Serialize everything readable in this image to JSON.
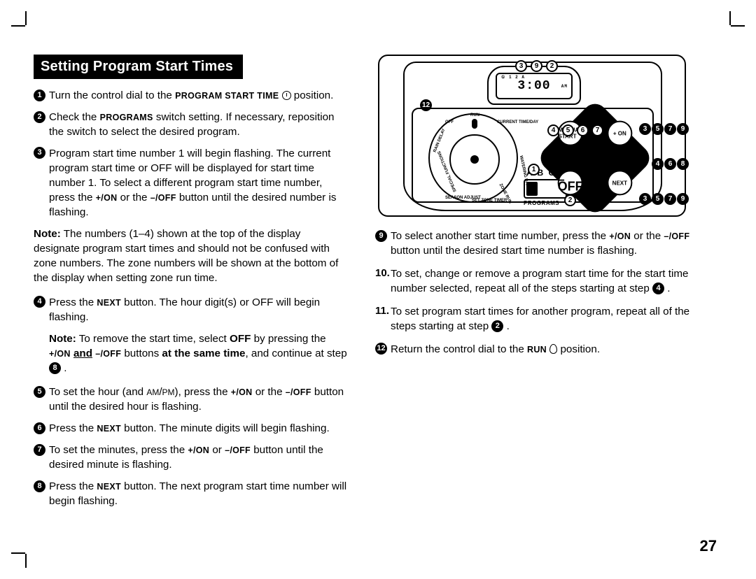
{
  "page_number": "27",
  "title": "Setting Program Start Times",
  "left_steps": [
    {
      "n": "1",
      "html": "Turn the control dial to the <span class='smallcaps'>program start time</span> <span class='clock-icon'></span> position."
    },
    {
      "n": "2",
      "html": "Check the <span class='smallcaps'>programs</span> switch setting. If necessary, reposition the switch to select the desired program."
    },
    {
      "n": "3",
      "html": "Program start time number 1 will begin flashing. The current program start time or OFF will be displayed for start time number 1. To select a different program start time number, press the <span class='smallcaps'>+/on</span> or the <span class='smallcaps'>–/off</span> button until the desired number is flashing."
    }
  ],
  "note1": "<span class='b'>Note:</span> The numbers (1–4) shown at the top of the display designate program start times and should not be confused with zone numbers. The zone numbers will be shown at the bottom of the display when setting zone run time.",
  "left_steps2": [
    {
      "n": "4",
      "html": "Press the <span class='smallcaps'>next</span> button. The hour digit(s) or OFF will begin flashing."
    }
  ],
  "subnote4": "<span class='b'>Note:</span> To remove the start time, select <span class='b'>OFF</span> by pressing the <span class='smallcaps'>+/on</span> <span class='b u'>and</span> <span class='smallcaps'>–/off</span> buttons <span class='b'>at the same time</span>, and continue at step <span class='circ-num'>8</span> .",
  "left_steps3": [
    {
      "n": "5",
      "html": "To set the hour (and <span style='font-size:12px'>AM</span>/<span style='font-size:12px'>PM</span>), press the <span class='smallcaps'>+/on</span> or the <span class='smallcaps'>–/off</span> button until the desired hour is flashing."
    },
    {
      "n": "6",
      "html": "Press the <span class='smallcaps'>next</span> button. The minute digits will begin flashing."
    },
    {
      "n": "7",
      "html": "To set the minutes, press the <span class='smallcaps'>+/on</span> or <span class='smallcaps'>–/off</span> button until the desired minute is flashing."
    },
    {
      "n": "8",
      "html": "Press the <span class='smallcaps'>next</span> button. The next program start time number will begin flashing."
    }
  ],
  "right_steps": [
    {
      "n": "9",
      "type": "circ",
      "html": "To select another start time number, press the <span class='smallcaps'>+/on</span> or the <span class='smallcaps'>–/off</span> button until the desired start time number is flashing."
    },
    {
      "n": "10.",
      "type": "plain",
      "html": "To set, change or remove a program start time for the start time number selected, repeat all of the steps starting at step <span class='circ-num'>4</span> ."
    },
    {
      "n": "11.",
      "type": "plain",
      "html": "To set program start times for another program, repeat all of the steps starting at step <span class='circ-num'>2</span> ."
    },
    {
      "n": "12",
      "type": "circ",
      "html": "Return the control dial to the <span class='smallcaps'>run</span> <span class='drop-icon'></span> position."
    }
  ],
  "lcd_time": "3:00",
  "lcd_top": "① 1 2   A",
  "lcd_am": "AM",
  "abc": "A B C",
  "programs_label": "PROGRAMS",
  "dpad": {
    "n": "+\nON",
    "e": "NEXT",
    "s": "–\nOFF",
    "w": "MANUAL\nSTART"
  },
  "dial_labels": {
    "run": "RUN",
    "off": "OFF",
    "rain": "RAIN\nDELAY",
    "spec": "SPECIAL\nFUNCTIONS",
    "season": "SEASON\nADJUST",
    "timer": "SET ZONE\nTIMER",
    "zone": "ZONE\nRUN",
    "days": "WATERING\nDAYS",
    "cur": "CURRENT\nTIME/DAY"
  },
  "callouts": {
    "top": [
      "3",
      "9",
      "2"
    ],
    "open_mid": [
      "4",
      "5",
      "6",
      "7"
    ],
    "open_one": "1",
    "open_two": "2",
    "twelve": "12",
    "grp_tr": [
      "3",
      "5",
      "7",
      "9"
    ],
    "grp_mr": [
      "4",
      "6",
      "8"
    ],
    "grp_br": [
      "3",
      "5",
      "7",
      "9"
    ]
  },
  "colors": {
    "bg": "#ffffff",
    "text": "#000000",
    "title_bg": "#000000",
    "title_fg": "#ffffff"
  }
}
